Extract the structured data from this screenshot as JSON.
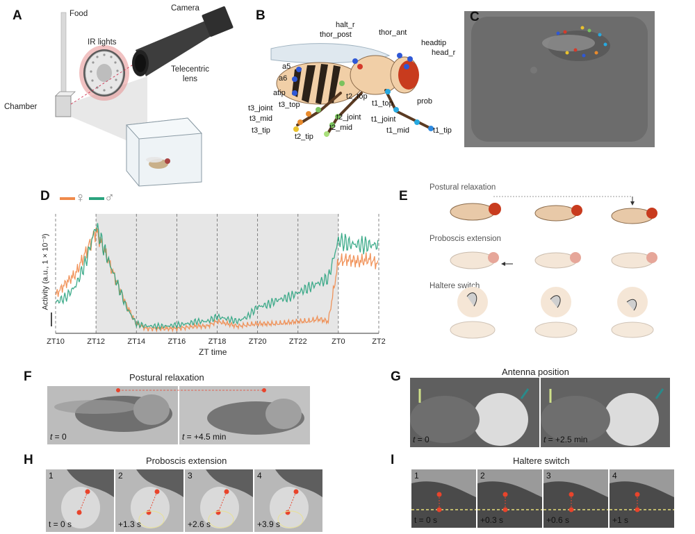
{
  "panels": {
    "A": {
      "letter": "A",
      "labels": {
        "food": "Food",
        "camera": "Camera",
        "ir_lights": "IR lights",
        "telecentric_lens": "Telecentric\nlens",
        "chamber": "Chamber"
      }
    },
    "B": {
      "letter": "B",
      "body_parts": [
        "halt_r",
        "thor_post",
        "thor_ant",
        "headtip",
        "head_r",
        "a5",
        "a6",
        "t2_top",
        "atip",
        "t3_top",
        "t3_joint",
        "t3_mid",
        "t3_tip",
        "t2_joint",
        "t2_mid",
        "t2_tip",
        "t1_top",
        "t1_joint",
        "t1_mid",
        "t1_tip",
        "prob"
      ]
    },
    "C": {
      "letter": "C"
    },
    "D": {
      "letter": "D",
      "legend_female": "♀",
      "legend_male": "♂",
      "ylabel": "Activity  (a.u., 1 × 10⁻³)",
      "xlabel": "ZT time"
    },
    "E": {
      "letter": "E",
      "rows": [
        "Postural relaxation",
        "Proboscis extension",
        "Haltere switch"
      ]
    },
    "F": {
      "letter": "F",
      "title": "Postural relaxation",
      "frames": [
        {
          "t_var": "t",
          "t_val": " = 0"
        },
        {
          "t_var": "t",
          "t_val": " = +4.5 min"
        }
      ]
    },
    "G": {
      "letter": "G",
      "title": "Antenna position",
      "frames": [
        {
          "t_var": "t",
          "t_val": " = 0"
        },
        {
          "t_var": "t",
          "t_val": " = +2.5 min"
        }
      ]
    },
    "H": {
      "letter": "H",
      "title": "Proboscis extension",
      "frames": [
        {
          "num": "1",
          "time": "t = 0 s"
        },
        {
          "num": "2",
          "time": "+1.3 s"
        },
        {
          "num": "3",
          "time": "+2.6 s"
        },
        {
          "num": "4",
          "time": "+3.9 s"
        }
      ]
    },
    "I": {
      "letter": "I",
      "title": "Haltere switch",
      "frames": [
        {
          "num": "1",
          "time": "t = 0 s"
        },
        {
          "num": "2",
          "time": "+0.3 s"
        },
        {
          "num": "3",
          "time": "+0.6 s"
        },
        {
          "num": "4",
          "time": "+1 s"
        }
      ]
    }
  },
  "colors": {
    "female": "#f08a4b",
    "male": "#2aa37e",
    "marker": "#e8442c",
    "haltere_line": "#e8e07a"
  },
  "chart_data": {
    "type": "line",
    "categories": [
      "ZT10",
      "ZT12",
      "ZT14",
      "ZT16",
      "ZT18",
      "ZT20",
      "ZT22",
      "ZT0",
      "ZT2"
    ],
    "xlabel": "ZT time",
    "ylabel": "Activity  (a.u., 1 × 10⁻³)",
    "legend": "top-left",
    "x": [
      10,
      10.5,
      11,
      11.5,
      12,
      12.5,
      13,
      13.5,
      14,
      14.5,
      15,
      15.5,
      16,
      16.5,
      17,
      17.5,
      18,
      18.5,
      19,
      19.5,
      20,
      20.5,
      21,
      21.5,
      22,
      22.5,
      23,
      23.5,
      24,
      24.5,
      25,
      25.5,
      26
    ],
    "series": [
      {
        "name": "♀",
        "color": "#f08a4b",
        "values": [
          0.32,
          0.42,
          0.5,
          0.68,
          0.86,
          0.66,
          0.44,
          0.24,
          0.08,
          0.04,
          0.04,
          0.04,
          0.04,
          0.05,
          0.06,
          0.06,
          0.1,
          0.08,
          0.06,
          0.07,
          0.08,
          0.08,
          0.08,
          0.09,
          0.1,
          0.1,
          0.12,
          0.1,
          0.6,
          0.62,
          0.6,
          0.62,
          0.58
        ]
      },
      {
        "name": "♂",
        "color": "#2aa37e",
        "values": [
          0.26,
          0.3,
          0.4,
          0.6,
          0.9,
          0.66,
          0.44,
          0.22,
          0.08,
          0.06,
          0.06,
          0.06,
          0.07,
          0.08,
          0.1,
          0.1,
          0.14,
          0.12,
          0.1,
          0.14,
          0.22,
          0.24,
          0.28,
          0.3,
          0.34,
          0.38,
          0.42,
          0.46,
          0.78,
          0.75,
          0.74,
          0.74,
          0.74
        ]
      }
    ]
  }
}
